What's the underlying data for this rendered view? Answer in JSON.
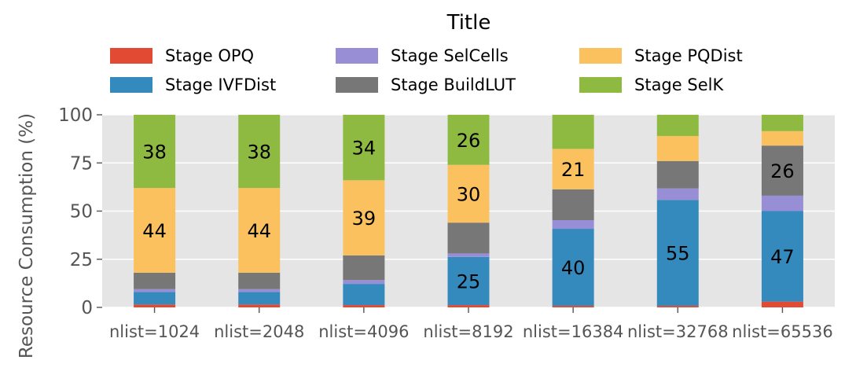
{
  "chart_data": {
    "type": "bar",
    "stacked": true,
    "title": "Title",
    "xlabel": "",
    "ylabel": "Resource Consumption (%)",
    "ylim": [
      0,
      100
    ],
    "yticks": [
      "0",
      "25",
      "50",
      "75",
      "100"
    ],
    "grid": true,
    "legend_position": "top",
    "categories": [
      "nlist=1024",
      "nlist=2048",
      "nlist=4096",
      "nlist=8192",
      "nlist=16384",
      "nlist=32768",
      "nlist=65536"
    ],
    "series": [
      {
        "name": "Stage OPQ",
        "color": "#E24A33",
        "values": [
          1.5,
          1.5,
          1.2,
          1.2,
          0.8,
          0.8,
          3.0
        ]
      },
      {
        "name": "Stage IVFDist",
        "color": "#348ABD",
        "values": [
          6.5,
          6.5,
          11,
          25,
          40,
          55,
          47
        ]
      },
      {
        "name": "Stage SelCells",
        "color": "#988ED5",
        "values": [
          1.5,
          1.5,
          2,
          1.8,
          4.5,
          6,
          8
        ]
      },
      {
        "name": "Stage BuildLUT",
        "color": "#777777",
        "values": [
          8.5,
          8.5,
          12.8,
          16,
          16,
          14.2,
          26
        ]
      },
      {
        "name": "Stage PQDist",
        "color": "#FBC15E",
        "values": [
          44,
          44,
          39,
          30,
          21,
          13,
          7.5
        ]
      },
      {
        "name": "Stage SelK",
        "color": "#8EBA42",
        "values": [
          38,
          38,
          34,
          26,
          17.7,
          11,
          8.5
        ]
      }
    ],
    "data_labels": [
      {
        "category": 0,
        "series": 4,
        "text": "44"
      },
      {
        "category": 0,
        "series": 5,
        "text": "38"
      },
      {
        "category": 1,
        "series": 4,
        "text": "44"
      },
      {
        "category": 1,
        "series": 5,
        "text": "38"
      },
      {
        "category": 2,
        "series": 4,
        "text": "39"
      },
      {
        "category": 2,
        "series": 5,
        "text": "34"
      },
      {
        "category": 3,
        "series": 1,
        "text": "25"
      },
      {
        "category": 3,
        "series": 4,
        "text": "30"
      },
      {
        "category": 3,
        "series": 5,
        "text": "26"
      },
      {
        "category": 4,
        "series": 1,
        "text": "40"
      },
      {
        "category": 4,
        "series": 4,
        "text": "21"
      },
      {
        "category": 5,
        "series": 1,
        "text": "55"
      },
      {
        "category": 6,
        "series": 1,
        "text": "47"
      },
      {
        "category": 6,
        "series": 3,
        "text": "26"
      }
    ]
  }
}
